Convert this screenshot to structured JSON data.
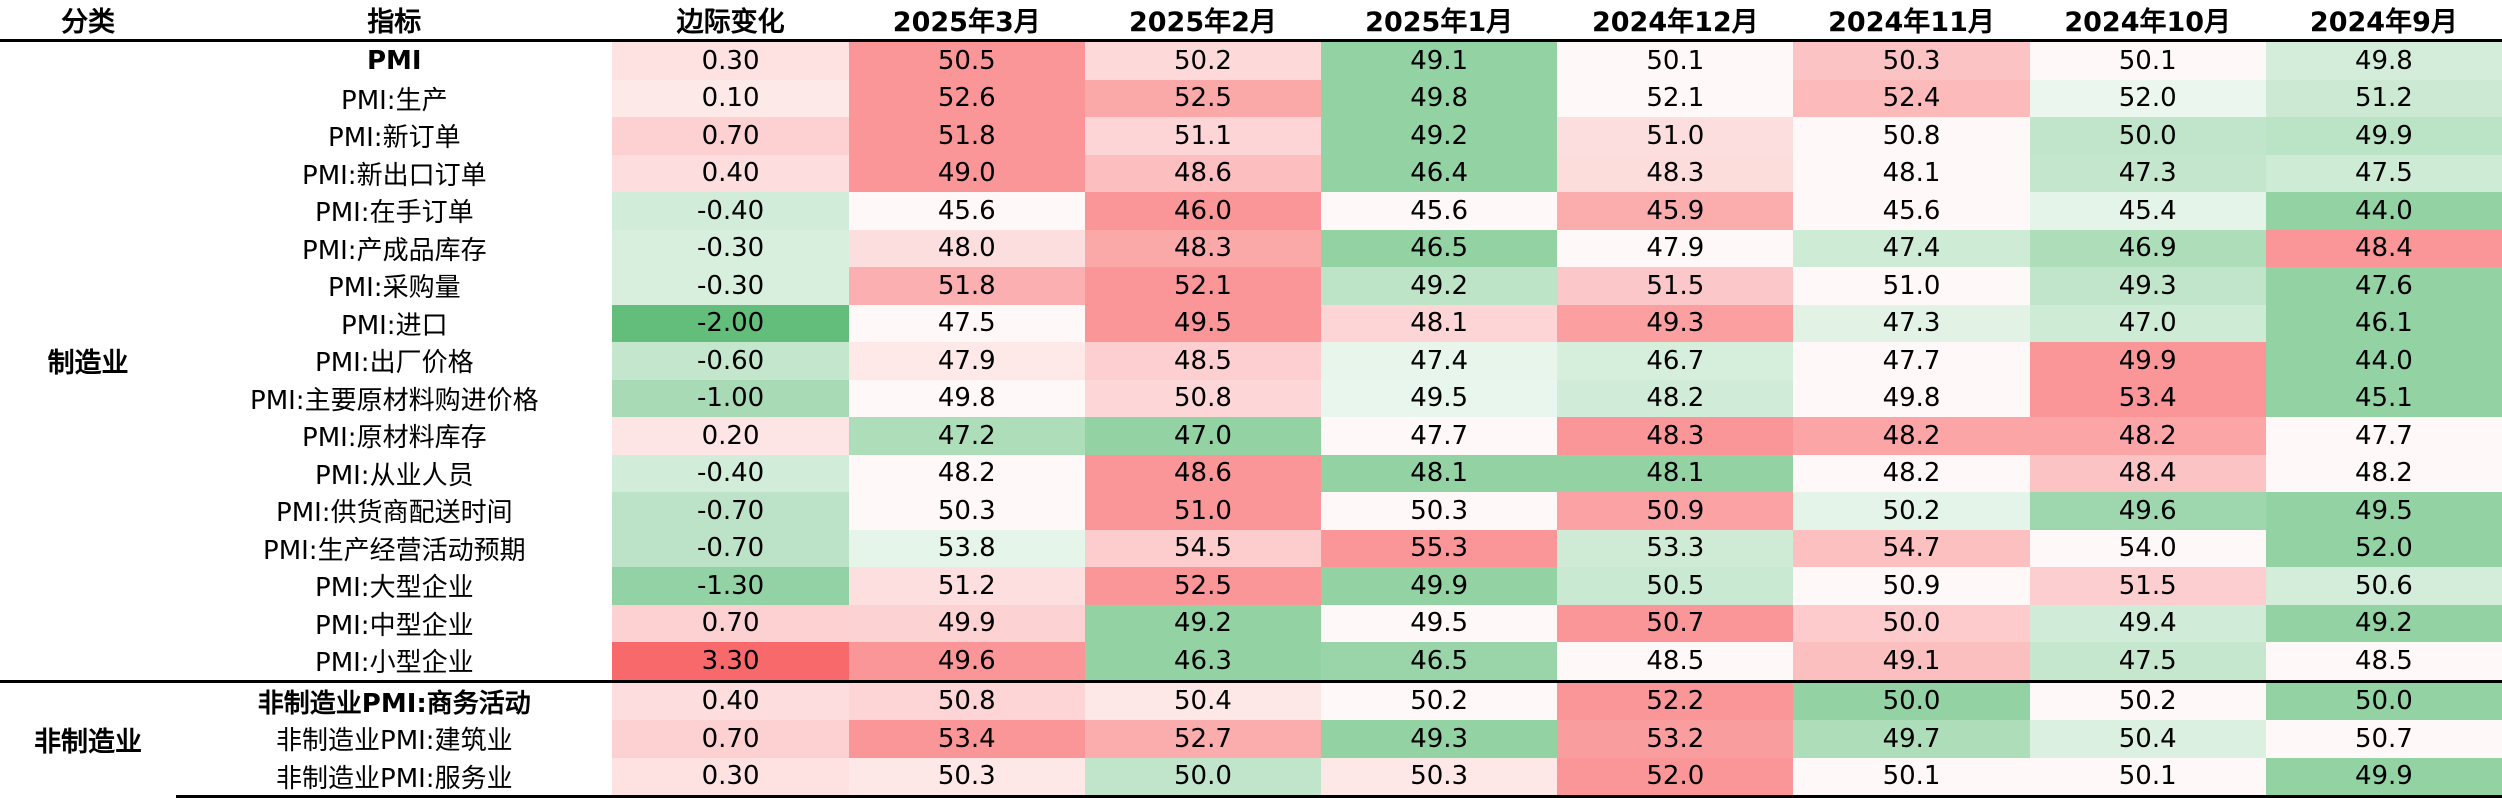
{
  "headers": [
    "分类",
    "指标",
    "边际变化",
    "2025年3月",
    "2025年2月",
    "2025年1月",
    "2024年12月",
    "2024年11月",
    "2024年10月",
    "2024年9月"
  ],
  "sections": [
    {
      "category": "制造业",
      "rows": [
        {
          "label": "PMI",
          "bold": true,
          "change": "0.30",
          "values": [
            "50.5",
            "50.2",
            "49.1",
            "50.1",
            "50.3",
            "50.1",
            "49.8"
          ]
        },
        {
          "label": "PMI:生产",
          "change": "0.10",
          "values": [
            "52.6",
            "52.5",
            "49.8",
            "52.1",
            "52.4",
            "52.0",
            "51.2"
          ]
        },
        {
          "label": "PMI:新订单",
          "change": "0.70",
          "values": [
            "51.8",
            "51.1",
            "49.2",
            "51.0",
            "50.8",
            "50.0",
            "49.9"
          ]
        },
        {
          "label": "PMI:新出口订单",
          "change": "0.40",
          "values": [
            "49.0",
            "48.6",
            "46.4",
            "48.3",
            "48.1",
            "47.3",
            "47.5"
          ]
        },
        {
          "label": "PMI:在手订单",
          "change": "-0.40",
          "values": [
            "45.6",
            "46.0",
            "45.6",
            "45.9",
            "45.6",
            "45.4",
            "44.0"
          ]
        },
        {
          "label": "PMI:产成品库存",
          "change": "-0.30",
          "values": [
            "48.0",
            "48.3",
            "46.5",
            "47.9",
            "47.4",
            "46.9",
            "48.4"
          ]
        },
        {
          "label": "PMI:采购量",
          "change": "-0.30",
          "values": [
            "51.8",
            "52.1",
            "49.2",
            "51.5",
            "51.0",
            "49.3",
            "47.6"
          ]
        },
        {
          "label": "PMI:进口",
          "change": "-2.00",
          "values": [
            "47.5",
            "49.5",
            "48.1",
            "49.3",
            "47.3",
            "47.0",
            "46.1"
          ]
        },
        {
          "label": "PMI:出厂价格",
          "change": "-0.60",
          "values": [
            "47.9",
            "48.5",
            "47.4",
            "46.7",
            "47.7",
            "49.9",
            "44.0"
          ]
        },
        {
          "label": "PMI:主要原材料购进价格",
          "change": "-1.00",
          "values": [
            "49.8",
            "50.8",
            "49.5",
            "48.2",
            "49.8",
            "53.4",
            "45.1"
          ]
        },
        {
          "label": "PMI:原材料库存",
          "change": "0.20",
          "values": [
            "47.2",
            "47.0",
            "47.7",
            "48.3",
            "48.2",
            "48.2",
            "47.7"
          ]
        },
        {
          "label": "PMI:从业人员",
          "change": "-0.40",
          "values": [
            "48.2",
            "48.6",
            "48.1",
            "48.1",
            "48.2",
            "48.4",
            "48.2"
          ]
        },
        {
          "label": "PMI:供货商配送时间",
          "change": "-0.70",
          "values": [
            "50.3",
            "51.0",
            "50.3",
            "50.9",
            "50.2",
            "49.6",
            "49.5"
          ]
        },
        {
          "label": "PMI:生产经营活动预期",
          "change": "-0.70",
          "values": [
            "53.8",
            "54.5",
            "55.3",
            "53.3",
            "54.7",
            "54.0",
            "52.0"
          ]
        },
        {
          "label": "PMI:大型企业",
          "change": "-1.30",
          "values": [
            "51.2",
            "52.5",
            "49.9",
            "50.5",
            "50.9",
            "51.5",
            "50.6"
          ]
        },
        {
          "label": "PMI:中型企业",
          "change": "0.70",
          "values": [
            "49.9",
            "49.2",
            "49.5",
            "50.7",
            "50.0",
            "49.4",
            "49.2"
          ]
        },
        {
          "label": "PMI:小型企业",
          "change": "3.30",
          "values": [
            "49.6",
            "46.3",
            "46.5",
            "48.5",
            "49.1",
            "47.5",
            "48.5"
          ]
        }
      ]
    },
    {
      "category": "非制造业",
      "rows": [
        {
          "label": "非制造业PMI:商务活动",
          "bold": true,
          "change": "0.40",
          "values": [
            "50.8",
            "50.4",
            "50.2",
            "52.2",
            "50.0",
            "50.2",
            "50.0"
          ]
        },
        {
          "label": "非制造业PMI:建筑业",
          "change": "0.70",
          "values": [
            "53.4",
            "52.7",
            "49.3",
            "53.2",
            "49.7",
            "50.4",
            "50.7"
          ]
        },
        {
          "label": "非制造业PMI:服务业",
          "change": "0.30",
          "values": [
            "50.3",
            "50.0",
            "50.3",
            "52.0",
            "50.1",
            "50.1",
            "49.9"
          ]
        }
      ]
    }
  ],
  "colors": {
    "neutral": "#ffffff",
    "positive_max": "#f8696b",
    "negative_max": "#63be7b"
  }
}
